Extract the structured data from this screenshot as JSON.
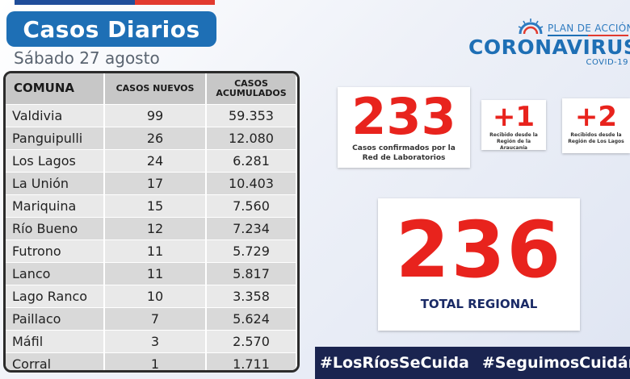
{
  "header": {
    "title": "Casos Diarios",
    "date": "Sábado 27 agosto"
  },
  "table": {
    "headers": {
      "comuna": "COMUNA",
      "casos_nuevos": "CASOS NUEVOS",
      "casos_acumulados_line1": "CASOS",
      "casos_acumulados_line2": "ACUMULADOS"
    },
    "rows": [
      {
        "comuna": "Valdivia",
        "nuevos": "99",
        "acumulados": "59.353"
      },
      {
        "comuna": "Panguipulli",
        "nuevos": "26",
        "acumulados": "12.080"
      },
      {
        "comuna": "Los Lagos",
        "nuevos": "24",
        "acumulados": "6.281"
      },
      {
        "comuna": "La Unión",
        "nuevos": "17",
        "acumulados": "10.403"
      },
      {
        "comuna": "Mariquina",
        "nuevos": "15",
        "acumulados": "7.560"
      },
      {
        "comuna": "Río Bueno",
        "nuevos": "12",
        "acumulados": "7.234"
      },
      {
        "comuna": "Futrono",
        "nuevos": "11",
        "acumulados": "5.729"
      },
      {
        "comuna": "Lanco",
        "nuevos": "11",
        "acumulados": "5.817"
      },
      {
        "comuna": "Lago Ranco",
        "nuevos": "10",
        "acumulados": "3.358"
      },
      {
        "comuna": "Paillaco",
        "nuevos": "7",
        "acumulados": "5.624"
      },
      {
        "comuna": "Máfil",
        "nuevos": "3",
        "acumulados": "2.570"
      },
      {
        "comuna": "Corral",
        "nuevos": "1",
        "acumulados": "1.711"
      }
    ]
  },
  "logo": {
    "plan": "PLAN DE ACCIÓN",
    "main": "CORONAVIRUS",
    "sub": "COVID-19"
  },
  "stats": {
    "lab_count": "233",
    "lab_caption_1": "Casos confirmados por la",
    "lab_caption_2": "Red de Laboratorios",
    "araucania_count": "+1",
    "araucania_caption_1": "Recibido desde la",
    "araucania_caption_2": "Región de la Araucanía",
    "loslagos_count": "+2",
    "loslagos_caption_1": "Recibidos desde la",
    "loslagos_caption_2": "Región de Los Lagos",
    "total": "236",
    "total_label": "TOTAL REGIONAL"
  },
  "hashtags": [
    "#LosRíosSeCuida",
    "#SeguimosCuidándonos"
  ],
  "colors": {
    "title_blue": "#1e6fb5",
    "number_red": "#e8231d",
    "hashtag_navy": "#1a2450"
  }
}
